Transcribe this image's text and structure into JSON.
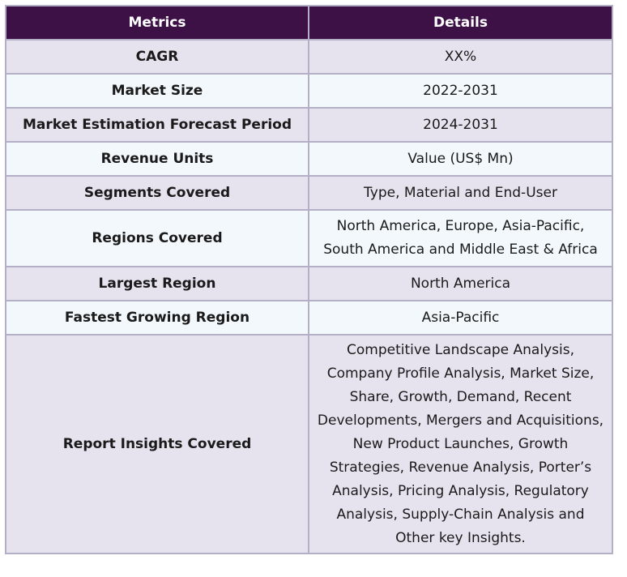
{
  "table": {
    "headers": [
      "Metrics",
      "Details"
    ],
    "rows": [
      {
        "metric": "CAGR",
        "details": "XX%"
      },
      {
        "metric": "Market Size",
        "details": "2022-2031"
      },
      {
        "metric": "Market Estimation Forecast Period",
        "details": "2024-2031"
      },
      {
        "metric": "Revenue Units",
        "details": "Value (US$ Mn)"
      },
      {
        "metric": "Segments Covered",
        "details": "Type, Material and End-User"
      },
      {
        "metric": "Regions Covered",
        "details": "North America, Europe, Asia-Pacific, South America and Middle East & Africa"
      },
      {
        "metric": "Largest Region",
        "details": "North America"
      },
      {
        "metric": "Fastest Growing Region",
        "details": "Asia-Pacific"
      },
      {
        "metric": "Report Insights Covered",
        "details": "Competitive Landscape Analysis, Company Profile Analysis, Market Size, Share, Growth, Demand, Recent Developments, Mergers and Acquisitions, New Product Launches, Growth Strategies, Revenue Analysis, Porter’s Analysis, Pricing Analysis, Regulatory Analysis, Supply-Chain Analysis and Other key Insights."
      }
    ]
  },
  "colors": {
    "header_bg": "#3d1046",
    "header_text": "#ffffff",
    "row_odd_bg": "#e6e3ef",
    "row_even_bg": "#f2f8fc",
    "border": "#b3afc6"
  }
}
